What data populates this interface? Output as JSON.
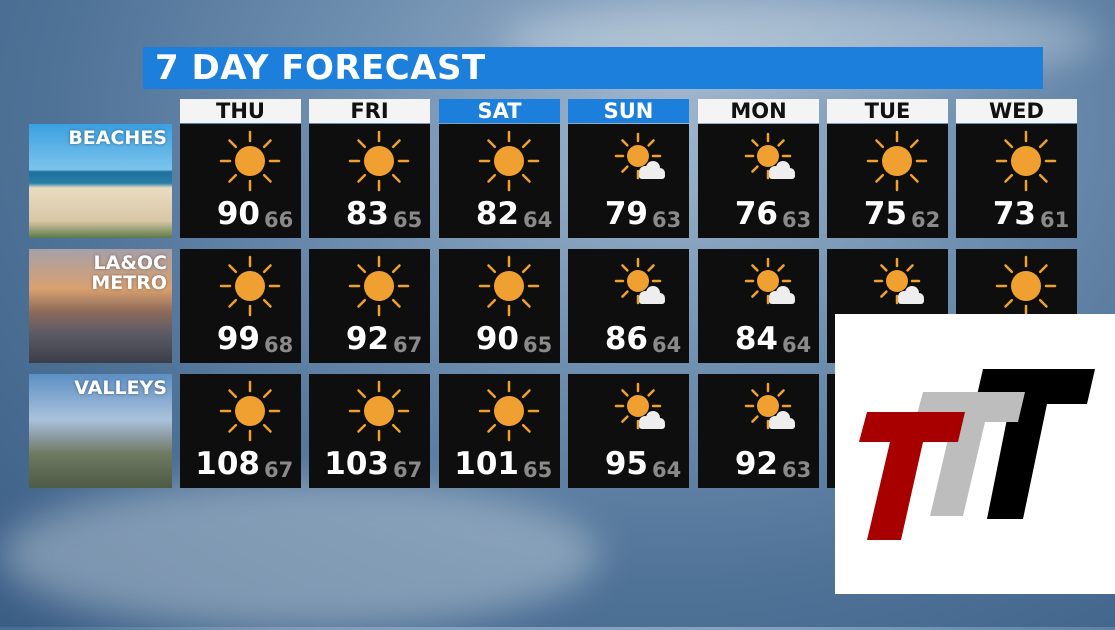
{
  "title": "7 DAY FORECAST",
  "days": [
    {
      "label": "THU",
      "weekend": false
    },
    {
      "label": "FRI",
      "weekend": false
    },
    {
      "label": "SAT",
      "weekend": true
    },
    {
      "label": "SUN",
      "weekend": true
    },
    {
      "label": "MON",
      "weekend": false
    },
    {
      "label": "TUE",
      "weekend": false
    },
    {
      "label": "WED",
      "weekend": false
    }
  ],
  "regions": [
    {
      "label": "BEACHES",
      "cells": [
        {
          "icon": "sunny",
          "hi": "90",
          "lo": "66"
        },
        {
          "icon": "sunny",
          "hi": "83",
          "lo": "65"
        },
        {
          "icon": "sunny",
          "hi": "82",
          "lo": "64"
        },
        {
          "icon": "mostly-sunny",
          "hi": "79",
          "lo": "63"
        },
        {
          "icon": "mostly-sunny",
          "hi": "76",
          "lo": "63"
        },
        {
          "icon": "sunny",
          "hi": "75",
          "lo": "62"
        },
        {
          "icon": "sunny",
          "hi": "73",
          "lo": "61"
        }
      ]
    },
    {
      "label": "LA&OC METRO",
      "cells": [
        {
          "icon": "sunny",
          "hi": "99",
          "lo": "68"
        },
        {
          "icon": "sunny",
          "hi": "92",
          "lo": "67"
        },
        {
          "icon": "sunny",
          "hi": "90",
          "lo": "65"
        },
        {
          "icon": "mostly-sunny",
          "hi": "86",
          "lo": "64"
        },
        {
          "icon": "mostly-sunny",
          "hi": "84",
          "lo": "64"
        },
        {
          "icon": "mostly-sunny"
        },
        {
          "icon": "sunny"
        }
      ]
    },
    {
      "label": "VALLEYS",
      "cells": [
        {
          "icon": "sunny",
          "hi": "108",
          "lo": "67"
        },
        {
          "icon": "sunny",
          "hi": "103",
          "lo": "67"
        },
        {
          "icon": "sunny",
          "hi": "101",
          "lo": "65"
        },
        {
          "icon": "mostly-sunny",
          "hi": "95",
          "lo": "64"
        },
        {
          "icon": "mostly-sunny",
          "hi": "92",
          "lo": "63"
        },
        {},
        {}
      ]
    }
  ],
  "colors": {
    "accent": "#1d7fdc",
    "sun": "#f0a030",
    "cell": "#0e0e0e",
    "low_temp": "#8a8a8a"
  },
  "logo": {
    "text": "TTT",
    "colors": [
      "#a80000",
      "#bdbdbd",
      "#000000"
    ]
  }
}
